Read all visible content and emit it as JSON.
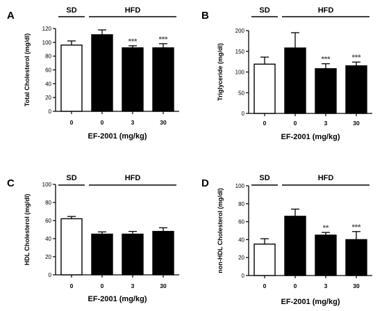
{
  "colors": {
    "sd_bar": "#ffffff",
    "hfd_bar": "#000000",
    "axis": "#000000",
    "significance": "#555555"
  },
  "chart_data": [
    {
      "type": "bar",
      "panel": "A",
      "ylabel": "Total Cholesterol (mg/dl)",
      "xlabel": "EF-2001 (mg/kg)",
      "ylim": [
        0,
        120
      ],
      "yticks": [
        0,
        20,
        40,
        60,
        80,
        100,
        120
      ],
      "categories": [
        "0",
        "0",
        "3",
        "30"
      ],
      "values": [
        96,
        111,
        92,
        92
      ],
      "errors": [
        6,
        7,
        3,
        6
      ],
      "significance": [
        "",
        "",
        "***",
        "***"
      ],
      "groups": [
        {
          "label": "SD",
          "bars": [
            0
          ]
        },
        {
          "label": "HFD",
          "bars": [
            1,
            2,
            3
          ]
        }
      ]
    },
    {
      "type": "bar",
      "panel": "B",
      "ylabel": "Triglyceride (mg/dl)",
      "xlabel": "EF-2001 (mg/kg)",
      "ylim": [
        0,
        200
      ],
      "yticks": [
        0,
        50,
        100,
        150,
        200
      ],
      "categories": [
        "0",
        "0",
        "3",
        "30"
      ],
      "values": [
        119,
        158,
        108,
        115
      ],
      "errors": [
        17,
        37,
        12,
        9
      ],
      "significance": [
        "",
        "",
        "***",
        "***"
      ],
      "groups": [
        {
          "label": "SD",
          "bars": [
            0
          ]
        },
        {
          "label": "HFD",
          "bars": [
            1,
            2,
            3
          ]
        }
      ]
    },
    {
      "type": "bar",
      "panel": "C",
      "ylabel": "HDL Cholesterol (mg/dl)",
      "xlabel": "EF-2001 (mg/kg)",
      "ylim": [
        0,
        100
      ],
      "yticks": [
        0,
        20,
        40,
        60,
        80,
        100
      ],
      "categories": [
        "0",
        "0",
        "3",
        "30"
      ],
      "values": [
        62,
        45,
        45,
        48
      ],
      "errors": [
        2.5,
        2.5,
        3,
        4
      ],
      "significance": [
        "",
        "",
        "",
        ""
      ],
      "groups": [
        {
          "label": "SD",
          "bars": [
            0
          ]
        },
        {
          "label": "HFD",
          "bars": [
            1,
            2,
            3
          ]
        }
      ]
    },
    {
      "type": "bar",
      "panel": "D",
      "ylabel": "non-HDL Cholesterol (mg/dl)",
      "xlabel": "EF-2001 (mg/kg)",
      "ylim": [
        0,
        100
      ],
      "yticks": [
        0,
        20,
        40,
        60,
        80,
        100
      ],
      "categories": [
        "0",
        "0",
        "3",
        "30"
      ],
      "values": [
        35,
        66,
        45,
        40
      ],
      "errors": [
        6,
        8,
        3,
        9
      ],
      "significance": [
        "",
        "",
        "**",
        "***"
      ],
      "groups": [
        {
          "label": "SD",
          "bars": [
            0
          ]
        },
        {
          "label": "HFD",
          "bars": [
            1,
            2,
            3
          ]
        }
      ]
    }
  ]
}
